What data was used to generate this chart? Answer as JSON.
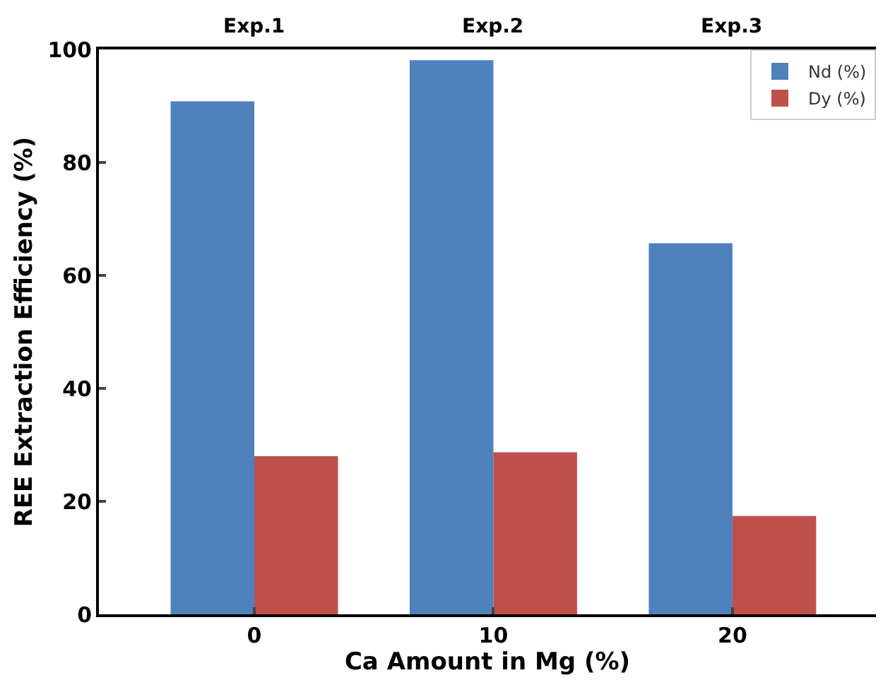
{
  "chart_data": {
    "type": "bar",
    "xlabel": "Ca Amount in Mg (%)",
    "ylabel": "REE Extraction Efficiency (%)",
    "categories": [
      "0",
      "10",
      "20"
    ],
    "series": [
      {
        "name": "Nd (%)",
        "color": "#4f81bd",
        "values": [
          90.8,
          98.1,
          65.7
        ]
      },
      {
        "name": "Dy (%)",
        "color": "#c0504d",
        "values": [
          28.0,
          28.7,
          17.4
        ]
      }
    ],
    "annotations": [
      "Exp.1",
      "Exp.2",
      "Exp.3"
    ],
    "ylim": [
      0,
      100
    ],
    "yticks": [
      0,
      20,
      40,
      60,
      80,
      100
    ],
    "legend": "top right"
  }
}
